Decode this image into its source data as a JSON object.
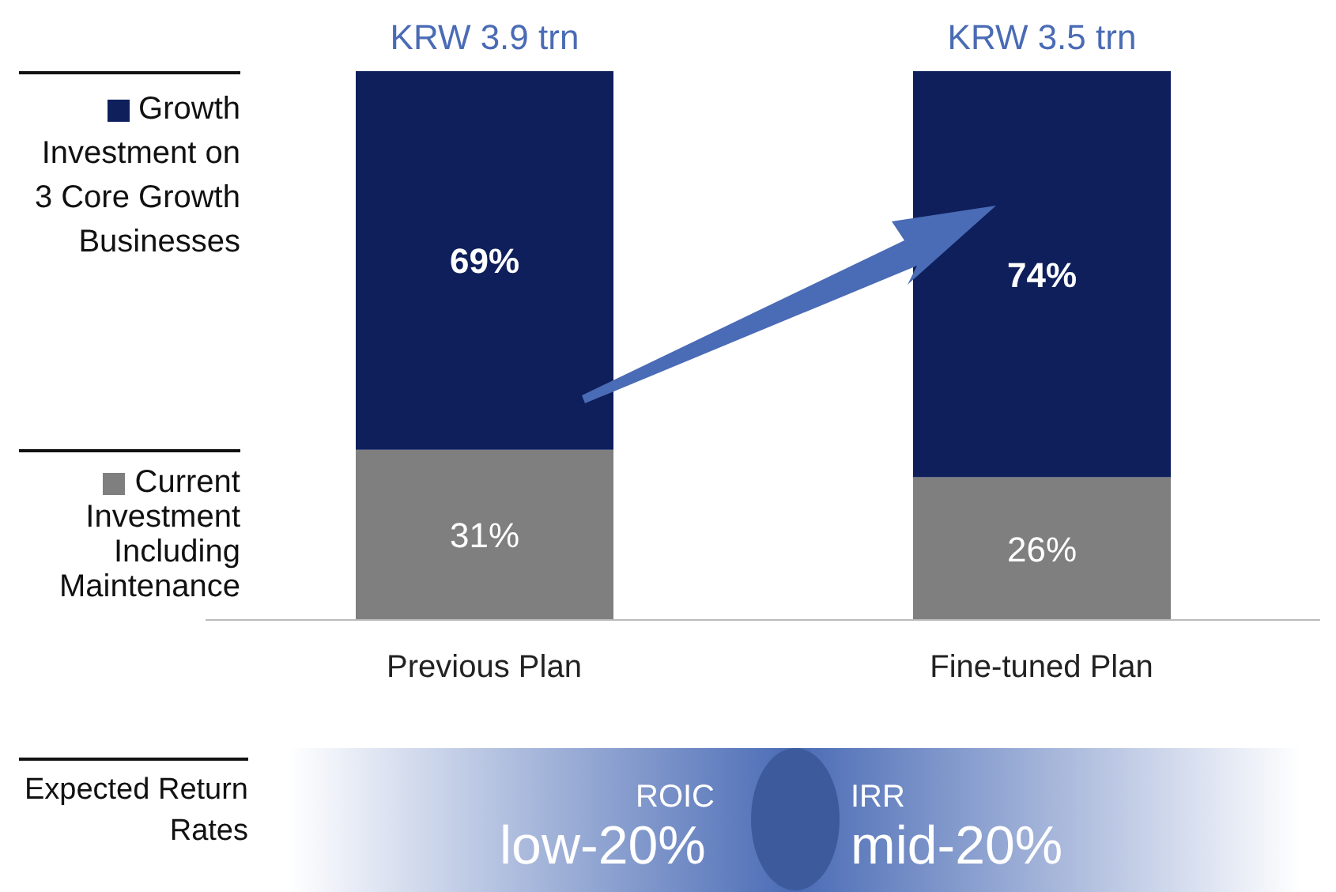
{
  "chart_data": {
    "type": "bar",
    "stacked": true,
    "ylim": [
      0,
      100
    ],
    "categories": [
      "Previous Plan",
      "Fine-tuned Plan"
    ],
    "series": [
      {
        "name": "Current Investment Including Maintenance",
        "color": "#7f7f7f",
        "values": [
          31,
          26
        ],
        "value_labels": [
          "31%",
          "26%"
        ]
      },
      {
        "name": "Growth Investment on 3 Core Growth Businesses",
        "color": "#0e1f5b",
        "values": [
          69,
          74
        ],
        "value_labels": [
          "69%",
          "74%"
        ]
      }
    ],
    "totals": [
      "KRW 3.9 trn",
      "KRW 3.5 trn"
    ],
    "legend": "left",
    "annotations": [
      "Expected Return Rates",
      "ROIC",
      "low-20%",
      "IRR",
      "mid-20%"
    ]
  }
}
